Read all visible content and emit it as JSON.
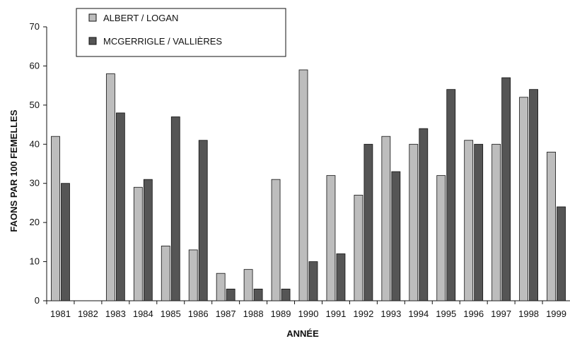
{
  "chart_data": {
    "type": "bar",
    "title": "",
    "xlabel": "ANNÉE",
    "ylabel": "FAONS PAR 100 FEMELLES",
    "ylim": [
      0,
      70
    ],
    "yticks": [
      0,
      10,
      20,
      30,
      40,
      50,
      60,
      70
    ],
    "grid": false,
    "legend_position": "top-left",
    "categories": [
      "1981",
      "1982",
      "1983",
      "1984",
      "1985",
      "1986",
      "1987",
      "1988",
      "1989",
      "1990",
      "1991",
      "1992",
      "1993",
      "1994",
      "1995",
      "1996",
      "1997",
      "1998",
      "1999"
    ],
    "series": [
      {
        "name": "ALBERT / LOGAN",
        "color": "#bdbdbd",
        "values": [
          42,
          null,
          58,
          29,
          14,
          13,
          7,
          8,
          31,
          59,
          32,
          27,
          42,
          40,
          32,
          41,
          40,
          52,
          38
        ]
      },
      {
        "name": "MCGERRIGLE / VALLIÈRES",
        "color": "#555555",
        "values": [
          30,
          null,
          48,
          31,
          47,
          41,
          3,
          3,
          3,
          10,
          12,
          40,
          33,
          44,
          54,
          40,
          57,
          54,
          24
        ]
      }
    ]
  }
}
